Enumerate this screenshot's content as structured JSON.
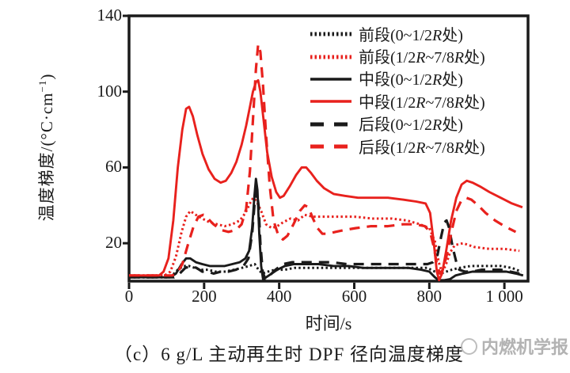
{
  "caption": {
    "text": "（c）6 g/L 主动再生时 DPF 径向温度梯度"
  },
  "watermark": {
    "text": "内燃机学报"
  },
  "chart_data": {
    "type": "line",
    "title": "",
    "xlabel": "时间/s",
    "ylabel": "温度梯度/(°C·cm⁻¹)",
    "ylabel_parts": {
      "prefix": "温度梯度/(°C·cm",
      "sup": "−1",
      "suffix": ")"
    },
    "xlim": [
      0,
      1063
    ],
    "ylim": [
      0,
      140
    ],
    "grid": false,
    "legend_position": "upper-right-inside",
    "colors": {
      "black": "#1a1a1a",
      "red": "#e8211d"
    },
    "xticks": [
      {
        "value": 0,
        "label": "0"
      },
      {
        "value": 200,
        "label": "200"
      },
      {
        "value": 400,
        "label": "400"
      },
      {
        "value": 600,
        "label": "600"
      },
      {
        "value": 800,
        "label": "800"
      },
      {
        "value": 1000,
        "label": "1 000"
      }
    ],
    "yticks": [
      {
        "value": 20,
        "label": "20"
      },
      {
        "value": 60,
        "label": "60"
      },
      {
        "value": 100,
        "label": "100"
      },
      {
        "value": 140,
        "label": "140"
      }
    ],
    "series": [
      {
        "name": "前段(0~1/2R处)",
        "color": "black",
        "style": "dotted",
        "points": [
          [
            0,
            2
          ],
          [
            100,
            2
          ],
          [
            115,
            3
          ],
          [
            130,
            6
          ],
          [
            145,
            8
          ],
          [
            160,
            8
          ],
          [
            175,
            7
          ],
          [
            190,
            6
          ],
          [
            210,
            6
          ],
          [
            230,
            5
          ],
          [
            255,
            5
          ],
          [
            280,
            6
          ],
          [
            300,
            7
          ],
          [
            320,
            8
          ],
          [
            335,
            9
          ],
          [
            345,
            6
          ],
          [
            355,
            4
          ],
          [
            370,
            5
          ],
          [
            390,
            6
          ],
          [
            415,
            6
          ],
          [
            440,
            7
          ],
          [
            470,
            7
          ],
          [
            510,
            7
          ],
          [
            560,
            7
          ],
          [
            610,
            7
          ],
          [
            660,
            7
          ],
          [
            710,
            7
          ],
          [
            760,
            7
          ],
          [
            795,
            7
          ],
          [
            815,
            5
          ],
          [
            830,
            4
          ],
          [
            845,
            5
          ],
          [
            860,
            6
          ],
          [
            880,
            7
          ],
          [
            910,
            8
          ],
          [
            950,
            8
          ],
          [
            990,
            8
          ],
          [
            1020,
            7
          ],
          [
            1045,
            5
          ]
        ]
      },
      {
        "name": "前段(1/2R~7/8R处)",
        "color": "red",
        "style": "dotted",
        "points": [
          [
            0,
            3
          ],
          [
            95,
            3
          ],
          [
            110,
            5
          ],
          [
            125,
            13
          ],
          [
            140,
            26
          ],
          [
            152,
            34
          ],
          [
            163,
            37
          ],
          [
            178,
            35
          ],
          [
            195,
            33
          ],
          [
            215,
            31
          ],
          [
            235,
            30
          ],
          [
            255,
            29
          ],
          [
            275,
            30
          ],
          [
            295,
            32
          ],
          [
            310,
            36
          ],
          [
            322,
            41
          ],
          [
            331,
            44
          ],
          [
            340,
            42
          ],
          [
            352,
            37
          ],
          [
            365,
            30
          ],
          [
            380,
            28
          ],
          [
            395,
            29
          ],
          [
            410,
            31
          ],
          [
            430,
            33
          ],
          [
            450,
            32
          ],
          [
            468,
            35
          ],
          [
            490,
            34
          ],
          [
            520,
            34
          ],
          [
            560,
            34
          ],
          [
            600,
            34
          ],
          [
            650,
            33
          ],
          [
            700,
            33
          ],
          [
            740,
            32
          ],
          [
            775,
            30
          ],
          [
            800,
            28
          ],
          [
            815,
            21
          ],
          [
            825,
            10
          ],
          [
            833,
            5
          ],
          [
            843,
            8
          ],
          [
            855,
            15
          ],
          [
            868,
            19
          ],
          [
            890,
            20
          ],
          [
            920,
            18
          ],
          [
            960,
            17
          ],
          [
            1000,
            17
          ],
          [
            1040,
            16
          ]
        ]
      },
      {
        "name": "中段(0~1/2R处)",
        "color": "black",
        "style": "solid",
        "points": [
          [
            0,
            2
          ],
          [
            110,
            2
          ],
          [
            125,
            4
          ],
          [
            140,
            9
          ],
          [
            152,
            12
          ],
          [
            163,
            12
          ],
          [
            178,
            10
          ],
          [
            195,
            9
          ],
          [
            215,
            8
          ],
          [
            235,
            8
          ],
          [
            255,
            8
          ],
          [
            275,
            9
          ],
          [
            295,
            10
          ],
          [
            310,
            12
          ],
          [
            320,
            16
          ],
          [
            328,
            28
          ],
          [
            334,
            45
          ],
          [
            338,
            54
          ],
          [
            342,
            48
          ],
          [
            347,
            25
          ],
          [
            352,
            8
          ],
          [
            357,
            1
          ],
          [
            365,
            2
          ],
          [
            380,
            4
          ],
          [
            395,
            6
          ],
          [
            415,
            8
          ],
          [
            440,
            9
          ],
          [
            470,
            9
          ],
          [
            505,
            9
          ],
          [
            545,
            8
          ],
          [
            585,
            8
          ],
          [
            625,
            7
          ],
          [
            665,
            7
          ],
          [
            705,
            7
          ],
          [
            745,
            7
          ],
          [
            778,
            6
          ],
          [
            800,
            5
          ],
          [
            815,
            2
          ],
          [
            825,
            0.5
          ],
          [
            840,
            0.5
          ],
          [
            855,
            1
          ],
          [
            870,
            3
          ],
          [
            890,
            4
          ],
          [
            915,
            5
          ],
          [
            945,
            5
          ],
          [
            975,
            5
          ],
          [
            1005,
            5
          ],
          [
            1030,
            4
          ],
          [
            1050,
            3
          ]
        ]
      },
      {
        "name": "中段(1/2R~7/8R处)",
        "color": "red",
        "style": "solid",
        "points": [
          [
            0,
            3
          ],
          [
            80,
            3
          ],
          [
            92,
            5
          ],
          [
            105,
            12
          ],
          [
            118,
            32
          ],
          [
            130,
            60
          ],
          [
            142,
            80
          ],
          [
            152,
            91
          ],
          [
            160,
            92
          ],
          [
            170,
            87
          ],
          [
            182,
            77
          ],
          [
            196,
            67
          ],
          [
            212,
            59
          ],
          [
            228,
            54
          ],
          [
            244,
            52
          ],
          [
            258,
            53
          ],
          [
            272,
            57
          ],
          [
            286,
            63
          ],
          [
            300,
            72
          ],
          [
            312,
            82
          ],
          [
            322,
            92
          ],
          [
            330,
            100
          ],
          [
            338,
            105
          ],
          [
            344,
            106
          ],
          [
            350,
            100
          ],
          [
            358,
            86
          ],
          [
            368,
            68
          ],
          [
            380,
            55
          ],
          [
            392,
            47
          ],
          [
            402,
            44
          ],
          [
            412,
            45
          ],
          [
            428,
            50
          ],
          [
            445,
            56
          ],
          [
            460,
            60
          ],
          [
            472,
            60
          ],
          [
            485,
            57
          ],
          [
            500,
            53
          ],
          [
            520,
            49
          ],
          [
            545,
            46
          ],
          [
            575,
            45
          ],
          [
            610,
            44
          ],
          [
            650,
            44
          ],
          [
            690,
            44
          ],
          [
            730,
            43
          ],
          [
            765,
            42
          ],
          [
            790,
            41
          ],
          [
            802,
            36
          ],
          [
            812,
            20
          ],
          [
            820,
            5
          ],
          [
            826,
            0.5
          ],
          [
            834,
            4
          ],
          [
            845,
            16
          ],
          [
            858,
            32
          ],
          [
            872,
            44
          ],
          [
            886,
            51
          ],
          [
            900,
            53
          ],
          [
            915,
            52
          ],
          [
            935,
            50
          ],
          [
            960,
            47
          ],
          [
            990,
            44
          ],
          [
            1020,
            41
          ],
          [
            1048,
            39
          ]
        ]
      },
      {
        "name": "后段(0~1/2R处)",
        "color": "black",
        "style": "dashed",
        "points": [
          [
            0,
            2
          ],
          [
            120,
            2
          ],
          [
            135,
            4
          ],
          [
            150,
            7
          ],
          [
            165,
            8
          ],
          [
            180,
            7
          ],
          [
            195,
            5
          ],
          [
            210,
            5
          ],
          [
            225,
            4
          ],
          [
            245,
            5
          ],
          [
            265,
            5
          ],
          [
            285,
            6
          ],
          [
            305,
            8
          ],
          [
            318,
            12
          ],
          [
            328,
            25
          ],
          [
            334,
            40
          ],
          [
            340,
            48
          ],
          [
            345,
            40
          ],
          [
            350,
            20
          ],
          [
            356,
            5
          ],
          [
            363,
            1
          ],
          [
            375,
            3
          ],
          [
            390,
            6
          ],
          [
            410,
            9
          ],
          [
            435,
            10
          ],
          [
            465,
            10
          ],
          [
            500,
            10
          ],
          [
            540,
            10
          ],
          [
            580,
            9
          ],
          [
            620,
            9
          ],
          [
            660,
            9
          ],
          [
            700,
            9
          ],
          [
            740,
            9
          ],
          [
            770,
            9
          ],
          [
            795,
            9
          ],
          [
            810,
            10
          ],
          [
            822,
            14
          ],
          [
            832,
            24
          ],
          [
            840,
            31
          ],
          [
            846,
            32
          ],
          [
            853,
            28
          ],
          [
            862,
            18
          ],
          [
            872,
            10
          ],
          [
            880,
            6
          ],
          [
            895,
            5
          ],
          [
            915,
            5
          ],
          [
            940,
            6
          ],
          [
            965,
            6
          ],
          [
            990,
            6
          ],
          [
            1015,
            5
          ],
          [
            1040,
            4
          ]
        ]
      },
      {
        "name": "后段(1/2R~7/8R处)",
        "color": "red",
        "style": "dashed",
        "points": [
          [
            0,
            3
          ],
          [
            115,
            3
          ],
          [
            128,
            4
          ],
          [
            142,
            9
          ],
          [
            158,
            20
          ],
          [
            172,
            29
          ],
          [
            185,
            34
          ],
          [
            198,
            35
          ],
          [
            210,
            33
          ],
          [
            225,
            30
          ],
          [
            245,
            27
          ],
          [
            265,
            26
          ],
          [
            285,
            27
          ],
          [
            300,
            30
          ],
          [
            312,
            38
          ],
          [
            322,
            58
          ],
          [
            330,
            85
          ],
          [
            338,
            112
          ],
          [
            344,
            125
          ],
          [
            350,
            121
          ],
          [
            357,
            103
          ],
          [
            365,
            77
          ],
          [
            375,
            50
          ],
          [
            385,
            32
          ],
          [
            398,
            24
          ],
          [
            410,
            22
          ],
          [
            422,
            24
          ],
          [
            438,
            30
          ],
          [
            455,
            37
          ],
          [
            468,
            40
          ],
          [
            478,
            39
          ],
          [
            490,
            33
          ],
          [
            502,
            28
          ],
          [
            515,
            25
          ],
          [
            530,
            25
          ],
          [
            550,
            26
          ],
          [
            575,
            27
          ],
          [
            605,
            28
          ],
          [
            645,
            29
          ],
          [
            690,
            29
          ],
          [
            730,
            30
          ],
          [
            762,
            30
          ],
          [
            788,
            29
          ],
          [
            802,
            26
          ],
          [
            812,
            18
          ],
          [
            820,
            9
          ],
          [
            828,
            4
          ],
          [
            836,
            6
          ],
          [
            848,
            15
          ],
          [
            860,
            27
          ],
          [
            872,
            37
          ],
          [
            884,
            42
          ],
          [
            898,
            44
          ],
          [
            912,
            43
          ],
          [
            930,
            40
          ],
          [
            950,
            36
          ],
          [
            975,
            32
          ],
          [
            1000,
            29
          ],
          [
            1030,
            26
          ]
        ]
      }
    ]
  }
}
